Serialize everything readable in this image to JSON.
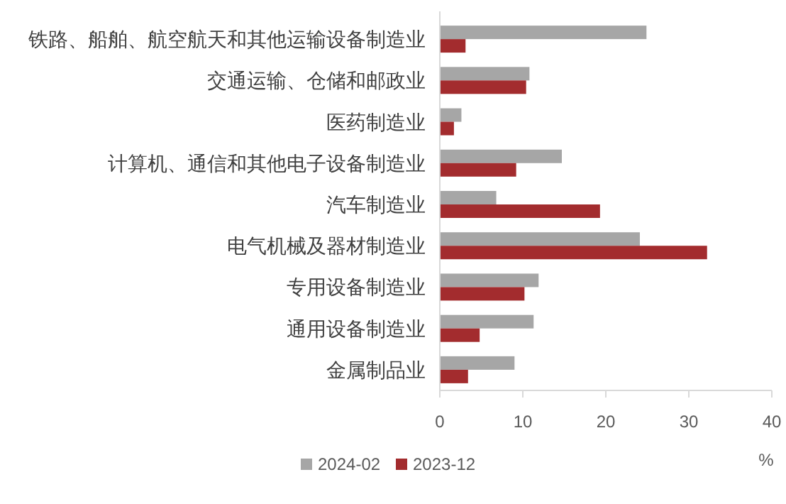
{
  "chart_data": {
    "type": "bar",
    "orientation": "horizontal",
    "xlabel": "%",
    "categories": [
      "铁路、船舶、航空航天和其他运输设备制造业",
      "交通运输、仓储和邮政业",
      "医药制造业",
      "计算机、通信和其他电子设备制造业",
      "汽车制造业",
      "电气机械及器材制造业",
      "专用设备制造业",
      "通用设备制造业",
      "金属制品业"
    ],
    "series": [
      {
        "name": "2024-02",
        "color": "#a6a6a6",
        "values": [
          24.9,
          10.8,
          2.6,
          14.7,
          6.8,
          24.1,
          11.9,
          11.3,
          9.0
        ]
      },
      {
        "name": "2023-12",
        "color": "#a32c2e",
        "values": [
          3.1,
          10.4,
          1.7,
          9.2,
          19.3,
          32.2,
          10.2,
          4.8,
          3.4
        ]
      }
    ],
    "xlim": [
      0,
      40
    ],
    "xticks": [
      0,
      10,
      20,
      30,
      40
    ],
    "grid": false,
    "legend": "bottom"
  }
}
